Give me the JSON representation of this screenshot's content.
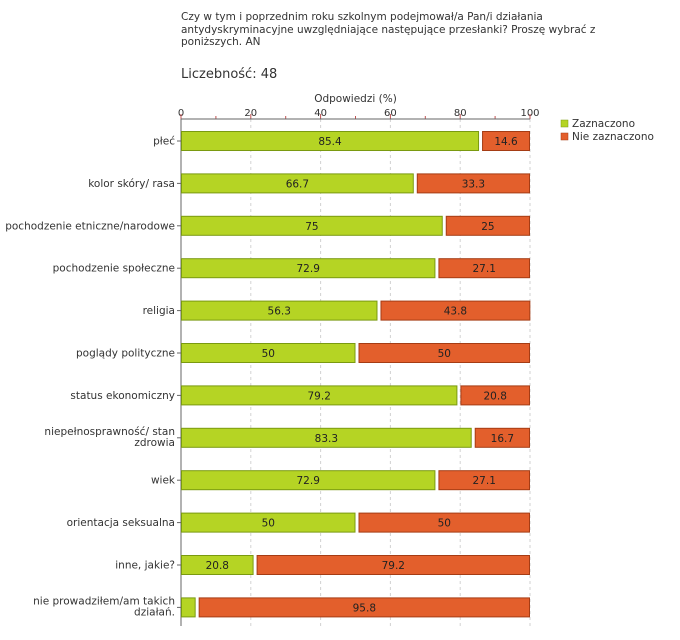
{
  "question": "Czy w tym i poprzednim roku szkolnym podejmował/a Pan/i działania antydyskryminacyjne uwzględniające następujące przesłanki? Proszę wybrać z poniższych. AN",
  "sample_label": "Liczebność: 48",
  "chart_data": {
    "type": "bar",
    "orientation": "horizontal",
    "stacked": true,
    "xlabel": "Odpowiedzi (%)",
    "xlim": [
      0,
      100
    ],
    "xticks": [
      "0",
      "20",
      "40",
      "60",
      "80",
      "100"
    ],
    "categories": [
      [
        "płeć"
      ],
      [
        "kolor skóry/ rasa"
      ],
      [
        "pochodzenie etniczne/narodowe"
      ],
      [
        "pochodzenie społeczne"
      ],
      [
        "religia"
      ],
      [
        "poglądy polityczne"
      ],
      [
        "status ekonomiczny"
      ],
      [
        "niepełnosprawność/ stan",
        "zdrowia"
      ],
      [
        "wiek"
      ],
      [
        "orientacja seksualna"
      ],
      [
        "inne, jakie?"
      ],
      [
        "nie prowadziłem/am takich",
        "działań."
      ]
    ],
    "series": [
      {
        "name": "Zaznaczono",
        "color": "#b5d424",
        "border": "#7a9a10",
        "values": [
          85.4,
          66.7,
          75,
          72.9,
          56.3,
          50,
          79.2,
          83.3,
          72.9,
          50,
          20.8,
          4.2
        ],
        "labels": [
          "85.4",
          "66.7",
          "75",
          "72.9",
          "56.3",
          "50",
          "79.2",
          "83.3",
          "72.9",
          "50",
          "20.8",
          ""
        ]
      },
      {
        "name": "Nie zaznaczono",
        "color": "#e35f2c",
        "border": "#a53c14",
        "values": [
          14.6,
          33.3,
          25,
          27.1,
          43.8,
          50,
          20.8,
          16.7,
          27.1,
          50,
          79.2,
          95.8
        ],
        "labels": [
          "14.6",
          "33.3",
          "25",
          "27.1",
          "43.8",
          "50",
          "20.8",
          "16.7",
          "27.1",
          "50",
          "79.2",
          "95.8"
        ]
      }
    ],
    "grid": true,
    "legend_position": "right"
  }
}
